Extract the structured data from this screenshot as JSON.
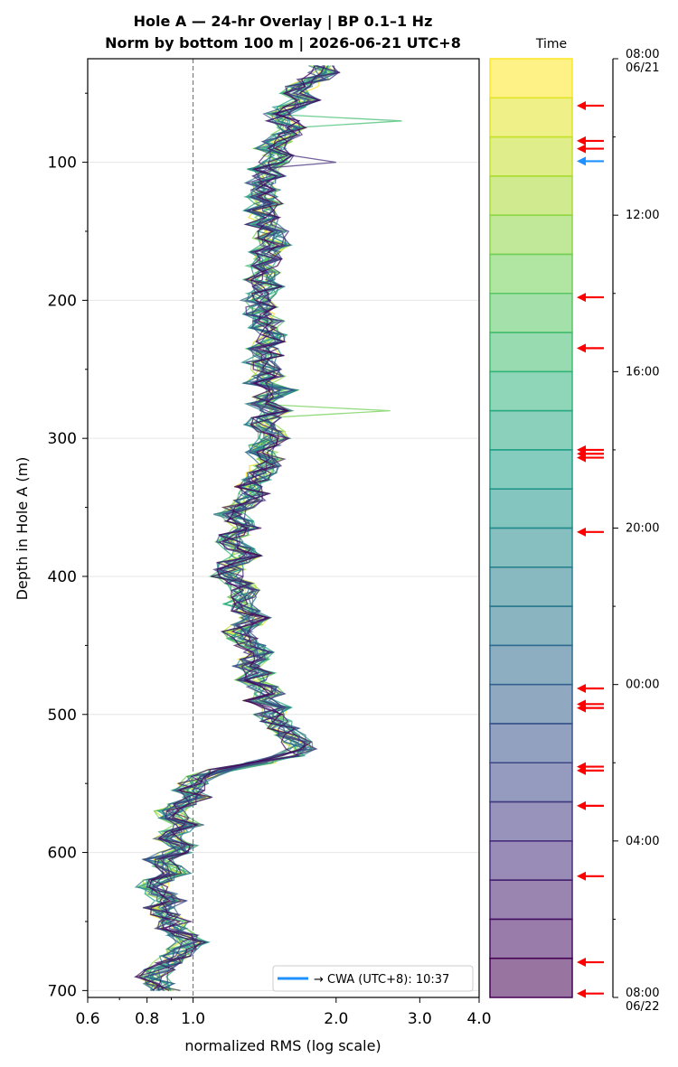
{
  "chart_data": [
    {
      "type": "line",
      "title_line1": "Hole A — 24-hr Overlay  |  BP 0.1–1 Hz",
      "title_line2": "Norm by bottom 100 m  |  2026-06-21 UTC+8",
      "xlabel": "normalized RMS  (log scale)",
      "ylabel": "Depth in Hole A (m)",
      "x_scale": "log",
      "xlim": [
        0.6,
        4.0
      ],
      "ylim": [
        705,
        25
      ],
      "x_ticks": [
        0.6,
        0.8,
        1.0,
        2.0,
        3.0,
        4.0
      ],
      "x_tick_labels": [
        "0.6",
        "0.8",
        "1.0",
        "2.0",
        "3.0",
        "4.0"
      ],
      "y_ticks": [
        100,
        200,
        300,
        400,
        500,
        600,
        700
      ],
      "y_tick_labels": [
        "100",
        "200",
        "300",
        "400",
        "500",
        "600",
        "700"
      ],
      "reference_line_x": 1.0,
      "grid": "horizontal",
      "legend": {
        "placement": "lower-right",
        "entry": "→ CWA (UTC+8): 10:37",
        "color": "#1e90ff"
      },
      "series_count": 24,
      "colormap": "viridis",
      "depth_step_m": 5,
      "depths": [
        30,
        35,
        40,
        45,
        50,
        55,
        60,
        65,
        70,
        75,
        80,
        85,
        90,
        95,
        100,
        105,
        110,
        115,
        120,
        125,
        130,
        135,
        140,
        145,
        150,
        155,
        160,
        165,
        170,
        175,
        180,
        185,
        190,
        195,
        200,
        205,
        210,
        215,
        220,
        225,
        230,
        235,
        240,
        245,
        250,
        255,
        260,
        265,
        270,
        275,
        280,
        285,
        290,
        295,
        300,
        305,
        310,
        315,
        320,
        325,
        330,
        335,
        340,
        345,
        350,
        355,
        360,
        365,
        370,
        375,
        380,
        385,
        390,
        395,
        400,
        405,
        410,
        415,
        420,
        425,
        430,
        435,
        440,
        445,
        450,
        455,
        460,
        465,
        470,
        475,
        480,
        485,
        490,
        495,
        500,
        505,
        510,
        515,
        520,
        525,
        530,
        535,
        540,
        545,
        550,
        555,
        560,
        565,
        570,
        575,
        580,
        585,
        590,
        595,
        600,
        605,
        610,
        615,
        620,
        625,
        630,
        635,
        640,
        645,
        650,
        655,
        660,
        665,
        670,
        675,
        680,
        685,
        690,
        695,
        700
      ],
      "mean_profile": [
        1.85,
        1.9,
        1.8,
        1.7,
        1.65,
        1.72,
        1.6,
        1.5,
        1.55,
        1.62,
        1.58,
        1.5,
        1.45,
        1.52,
        1.48,
        1.4,
        1.45,
        1.38,
        1.42,
        1.4,
        1.45,
        1.38,
        1.42,
        1.4,
        1.48,
        1.45,
        1.5,
        1.42,
        1.45,
        1.4,
        1.42,
        1.38,
        1.45,
        1.4,
        1.35,
        1.4,
        1.38,
        1.45,
        1.42,
        1.48,
        1.45,
        1.4,
        1.45,
        1.38,
        1.42,
        1.45,
        1.38,
        1.55,
        1.45,
        1.4,
        1.5,
        1.42,
        1.38,
        1.45,
        1.48,
        1.42,
        1.4,
        1.45,
        1.42,
        1.4,
        1.35,
        1.3,
        1.35,
        1.32,
        1.25,
        1.2,
        1.25,
        1.3,
        1.22,
        1.2,
        1.25,
        1.3,
        1.22,
        1.2,
        1.18,
        1.25,
        1.3,
        1.28,
        1.25,
        1.3,
        1.35,
        1.3,
        1.25,
        1.28,
        1.32,
        1.38,
        1.35,
        1.3,
        1.38,
        1.32,
        1.4,
        1.45,
        1.38,
        1.5,
        1.45,
        1.5,
        1.55,
        1.6,
        1.65,
        1.7,
        1.6,
        1.4,
        1.15,
        1.05,
        1.0,
        0.98,
        1.02,
        0.95,
        0.9,
        0.92,
        0.98,
        0.92,
        0.88,
        0.95,
        0.92,
        0.85,
        0.88,
        0.92,
        0.85,
        0.82,
        0.86,
        0.9,
        0.85,
        0.88,
        0.92,
        0.9,
        0.95,
        1.0,
        0.95,
        0.92,
        0.88,
        0.85,
        0.82,
        0.85,
        0.88
      ],
      "colorbar": {
        "label": "Time",
        "ticks": [
          "08:00\n06/21",
          "12:00",
          "16:00",
          "20:00",
          "00:00",
          "04:00",
          "08:00\n06/22"
        ],
        "tick_hours": [
          0,
          4,
          8,
          12,
          16,
          20,
          24
        ],
        "event_markers_hours": [
          1.2,
          2.1,
          2.3,
          6.1,
          7.4,
          10.0,
          10.1,
          10.2,
          12.1,
          16.1,
          16.5,
          16.6,
          18.1,
          18.2,
          19.1,
          20.9,
          23.1,
          23.9
        ],
        "event_marker_color": "#ff0000",
        "cwa_marker_hours": 2.62,
        "cwa_marker_color": "#1e90ff"
      },
      "colors": {
        "axis": "#000000",
        "grid": "#e6e6e6",
        "refline": "#3a7a8c"
      }
    }
  ]
}
